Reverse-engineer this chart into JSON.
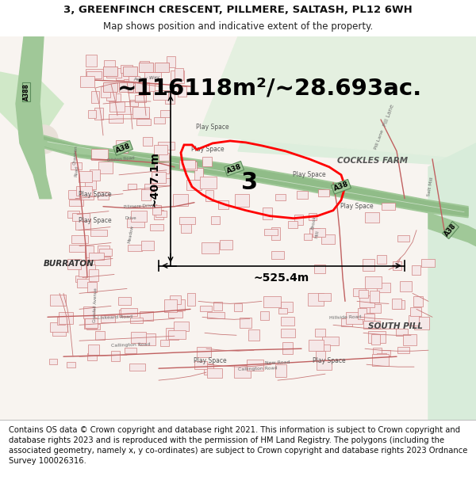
{
  "title_line1": "3, GREENFINCH CRESCENT, PILLMERE, SALTASH, PL12 6WH",
  "title_line2": "Map shows position and indicative extent of the property.",
  "area_text": "~116118m²/~28.693ac.",
  "number_label": "3",
  "dim_horizontal": "~525.4m",
  "dim_vertical": "~407.1m",
  "footer_text": "Contains OS data © Crown copyright and database right 2021. This information is subject to Crown copyright and database rights 2023 and is reproduced with the permission of HM Land Registry. The polygons (including the associated geometry, namely x, y co-ordinates) are subject to Crown copyright and database rights 2023 Ordnance Survey 100026316.",
  "fig_width": 6.0,
  "fig_height": 6.25,
  "title_fontsize": 9.5,
  "subtitle_fontsize": 8.5,
  "area_fontsize": 21,
  "number_fontsize": 22,
  "dim_fontsize": 10,
  "footer_fontsize": 7.2,
  "road_red": "#c87878",
  "road_red_dark": "#c06060",
  "building_fill": "#f5e8e8",
  "building_outline": "#d08080",
  "green_road": "#8ab88a",
  "green_road_dark": "#5a8a5a",
  "green_field": "#d8ecd0",
  "green_field2": "#c8e4c0",
  "map_bg": "#f8f4f0",
  "white_area": "#f0ece8",
  "text_dark": "#333333",
  "text_gray": "#666666"
}
